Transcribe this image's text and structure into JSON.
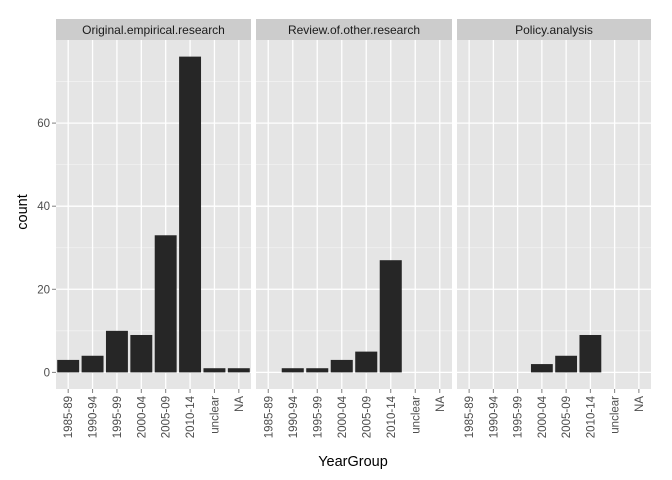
{
  "chart_data": {
    "type": "bar",
    "xlabel": "YearGroup",
    "ylabel": "count",
    "categories": [
      "1985-89",
      "1990-94",
      "1995-99",
      "2000-04",
      "2005-09",
      "2010-14",
      "unclear",
      "NA"
    ],
    "ylim": [
      -4,
      80
    ],
    "yticks": [
      0,
      20,
      40,
      60
    ],
    "grid": true,
    "facets": [
      {
        "label": "Original.empirical.research",
        "values": [
          3,
          4,
          10,
          9,
          33,
          76,
          1,
          1
        ]
      },
      {
        "label": "Review.of.other.research",
        "values": [
          0,
          1,
          1,
          3,
          5,
          27,
          0,
          0
        ]
      },
      {
        "label": "Policy.analysis",
        "values": [
          0,
          0,
          0,
          2,
          4,
          9,
          0,
          0
        ]
      }
    ],
    "colors": {
      "bar": "#262626",
      "panel": "#e5e5e5",
      "strip": "#cccccc",
      "grid_major": "#ffffff",
      "grid_minor": "#f2f2f2"
    }
  }
}
